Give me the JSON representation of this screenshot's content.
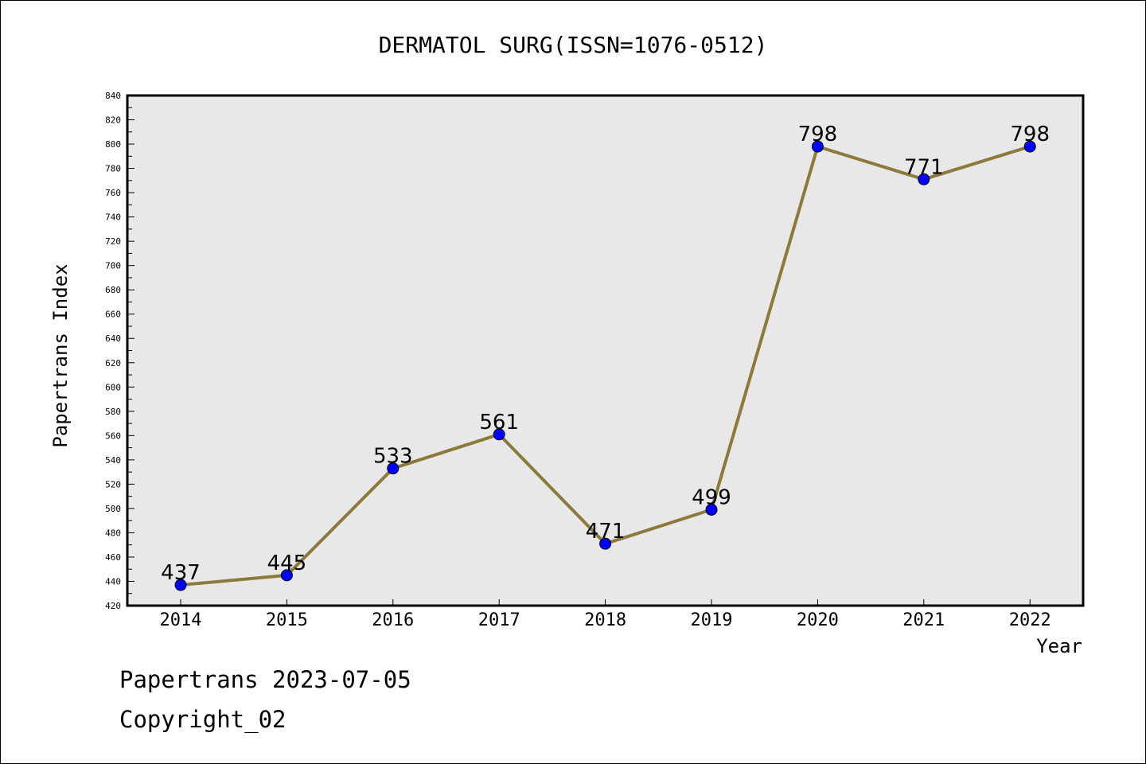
{
  "chart_data": {
    "type": "line",
    "title": "DERMATOL SURG(ISSN=1076-0512)",
    "xlabel": "Year",
    "ylabel": "Papertrans Index",
    "ylim": [
      420,
      840
    ],
    "ytick_step": 20,
    "categories": [
      "2014",
      "2015",
      "2016",
      "2017",
      "2018",
      "2019",
      "2020",
      "2021",
      "2022"
    ],
    "series": [
      {
        "values": [
          437,
          445,
          533,
          561,
          471,
          499,
          798,
          771,
          798
        ]
      }
    ],
    "grid": false,
    "colors": {
      "line": "#8B7A3A",
      "marker": "#0000FF",
      "plot_bg": "#E8E8E8"
    }
  },
  "footer": {
    "line1": "Papertrans 2023-07-05",
    "line2": "Copyright_02"
  }
}
